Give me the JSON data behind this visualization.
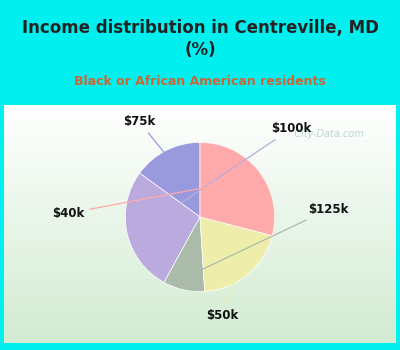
{
  "title": "Income distribution in Centreville, MD\n(%)",
  "subtitle": "Black or African American residents",
  "labels": [
    "$75k",
    "$100k",
    "$125k",
    "$50k",
    "$40k"
  ],
  "values": [
    15,
    27,
    9,
    20,
    29
  ],
  "colors": [
    "#9999dd",
    "#bbaadd",
    "#aabbaa",
    "#eeeeaa",
    "#ffaaaa"
  ],
  "bg_cyan": "#00f0f0",
  "title_color": "#222222",
  "subtitle_color": "#cc6633",
  "watermark": "  City-Data.com",
  "startangle": 90,
  "label_fontsize": 8.5,
  "title_fontsize": 12
}
